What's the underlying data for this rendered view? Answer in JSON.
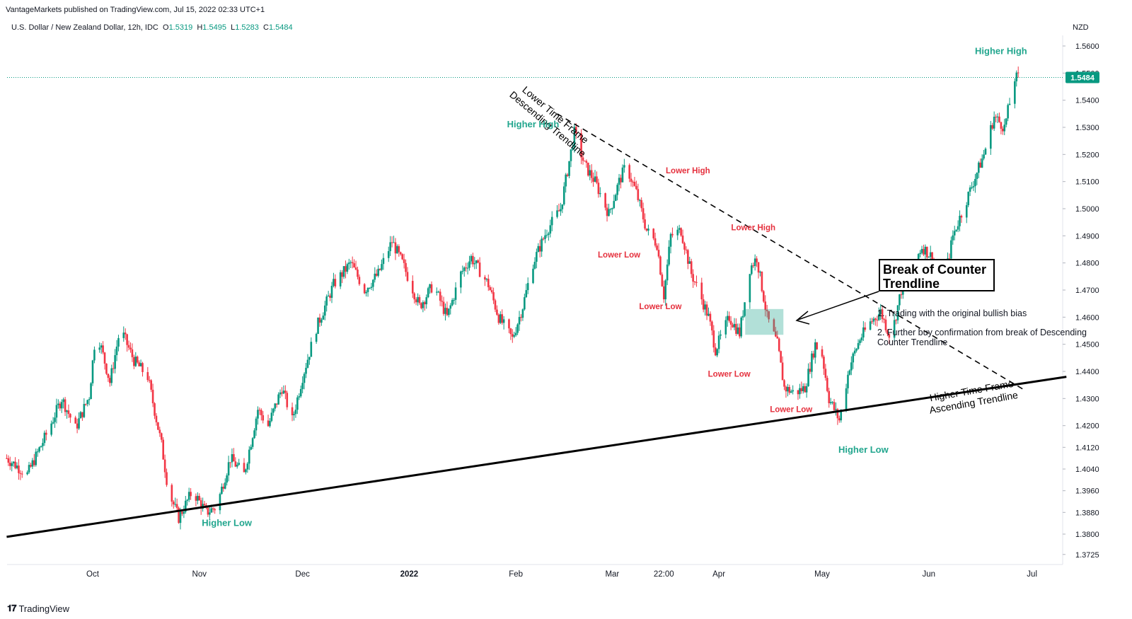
{
  "publisher": "VantageMarkets published on TradingView.com, Jul 15, 2022 02:33 UTC+1",
  "symbol": {
    "name": "U.S. Dollar / New Zealand Dollar, 12h, IDC",
    "o_label": "O",
    "o": "1.5319",
    "h_label": "H",
    "h": "1.5495",
    "l_label": "L",
    "l": "1.5283",
    "c_label": "C",
    "c": "1.5484"
  },
  "currency": "NZD",
  "last_price_label": "1.5484",
  "colors": {
    "up": "#089981",
    "down": "#f23645",
    "green_label": "#22a68e",
    "red_label": "#e5303d",
    "zone": "#22a68e"
  },
  "chart_data": {
    "type": "candlestick",
    "x_ticks": [
      "Oct",
      "Nov",
      "Dec",
      "2022",
      "Feb",
      "Mar",
      "22:00",
      "Apr",
      "May",
      "Jun",
      "Jul"
    ],
    "y_ticks": [
      "1.5600",
      "1.5500",
      "1.5400",
      "1.5300",
      "1.5200",
      "1.5100",
      "1.5000",
      "1.4900",
      "1.4800",
      "1.4700",
      "1.4600",
      "1.4500",
      "1.4400",
      "1.4300",
      "1.4200",
      "1.4120",
      "1.4040",
      "1.3960",
      "1.3880",
      "1.3800",
      "1.3725"
    ],
    "last_price": 1.5484,
    "close_path": [
      [
        "2021-09-06",
        1.408
      ],
      [
        "2021-09-12",
        1.402
      ],
      [
        "2021-09-18",
        1.418
      ],
      [
        "2021-09-22",
        1.43
      ],
      [
        "2021-09-26",
        1.419
      ],
      [
        "2021-09-30",
        1.431
      ],
      [
        "2021-10-02",
        1.456
      ],
      [
        "2021-10-06",
        1.436
      ],
      [
        "2021-10-09",
        1.456
      ],
      [
        "2021-10-13",
        1.444
      ],
      [
        "2021-10-17",
        1.438
      ],
      [
        "2021-10-21",
        1.413
      ],
      [
        "2021-10-23",
        1.396
      ],
      [
        "2021-10-26",
        1.386
      ],
      [
        "2021-10-30",
        1.396
      ],
      [
        "2021-11-03",
        1.388
      ],
      [
        "2021-11-06",
        1.39
      ],
      [
        "2021-11-10",
        1.408
      ],
      [
        "2021-11-14",
        1.402
      ],
      [
        "2021-11-18",
        1.426
      ],
      [
        "2021-11-21",
        1.42
      ],
      [
        "2021-11-25",
        1.434
      ],
      [
        "2021-11-28",
        1.422
      ],
      [
        "2021-12-01",
        1.438
      ],
      [
        "2021-12-05",
        1.456
      ],
      [
        "2021-12-10",
        1.472
      ],
      [
        "2021-12-15",
        1.48
      ],
      [
        "2021-12-19",
        1.47
      ],
      [
        "2021-12-23",
        1.476
      ],
      [
        "2021-12-27",
        1.488
      ],
      [
        "2021-12-30",
        1.48
      ],
      [
        "2022-01-04",
        1.464
      ],
      [
        "2022-01-08",
        1.472
      ],
      [
        "2022-01-12",
        1.46
      ],
      [
        "2022-01-16",
        1.476
      ],
      [
        "2022-01-19",
        1.482
      ],
      [
        "2022-01-24",
        1.472
      ],
      [
        "2022-01-27",
        1.46
      ],
      [
        "2022-01-31",
        1.452
      ],
      [
        "2022-02-03",
        1.464
      ],
      [
        "2022-02-06",
        1.48
      ],
      [
        "2022-02-10",
        1.492
      ],
      [
        "2022-02-14",
        1.5
      ],
      [
        "2022-02-18",
        1.528
      ],
      [
        "2022-02-21",
        1.516
      ],
      [
        "2022-02-24",
        1.51
      ],
      [
        "2022-02-28",
        1.498
      ],
      [
        "2022-03-03",
        1.51
      ],
      [
        "2022-03-05",
        1.516
      ],
      [
        "2022-03-08",
        1.506
      ],
      [
        "2022-03-11",
        1.492
      ],
      [
        "2022-03-14",
        1.487
      ],
      [
        "2022-03-16",
        1.468
      ],
      [
        "2022-03-18",
        1.49
      ],
      [
        "2022-03-21",
        1.492
      ],
      [
        "2022-03-24",
        1.476
      ],
      [
        "2022-03-26",
        1.47
      ],
      [
        "2022-03-29",
        1.46
      ],
      [
        "2022-03-31",
        1.448
      ],
      [
        "2022-04-04",
        1.46
      ],
      [
        "2022-04-07",
        1.454
      ],
      [
        "2022-04-10",
        1.478
      ],
      [
        "2022-04-12",
        1.482
      ],
      [
        "2022-04-15",
        1.46
      ],
      [
        "2022-04-18",
        1.45
      ],
      [
        "2022-04-20",
        1.434
      ],
      [
        "2022-04-23",
        1.432
      ],
      [
        "2022-04-26",
        1.434
      ],
      [
        "2022-04-29",
        1.45
      ],
      [
        "2022-05-01",
        1.446
      ],
      [
        "2022-05-03",
        1.43
      ],
      [
        "2022-05-06",
        1.422
      ],
      [
        "2022-05-09",
        1.442
      ],
      [
        "2022-05-12",
        1.452
      ],
      [
        "2022-05-15",
        1.458
      ],
      [
        "2022-05-18",
        1.462
      ],
      [
        "2022-05-21",
        1.452
      ],
      [
        "2022-05-24",
        1.47
      ],
      [
        "2022-05-27",
        1.478
      ],
      [
        "2022-05-30",
        1.486
      ],
      [
        "2022-06-02",
        1.482
      ],
      [
        "2022-06-05",
        1.47
      ],
      [
        "2022-06-08",
        1.49
      ],
      [
        "2022-06-11",
        1.5
      ],
      [
        "2022-06-14",
        1.51
      ],
      [
        "2022-06-17",
        1.52
      ],
      [
        "2022-06-20",
        1.534
      ],
      [
        "2022-06-23",
        1.53
      ],
      [
        "2022-06-26",
        1.548
      ],
      [
        "2022-06-27",
        1.5484
      ]
    ],
    "trendlines": [
      {
        "label": "Higher Time Frame Ascending Trendline",
        "style": "solid",
        "from": [
          "2021-09-06",
          1.379
        ],
        "to": [
          "2022-07-11",
          1.438
        ]
      },
      {
        "label": "Lower Time Frame Descending Trendline",
        "style": "dashed",
        "from": [
          "2022-02-13",
          1.535
        ],
        "to": [
          "2022-06-29",
          1.433
        ]
      }
    ],
    "annotations": [
      {
        "text": "Higher High",
        "color": "green",
        "at": [
          "2022-02-06",
          1.53
        ]
      },
      {
        "text": "Lower High",
        "color": "red",
        "at": [
          "2022-03-23",
          1.513
        ]
      },
      {
        "text": "Lower High",
        "color": "red",
        "at": [
          "2022-04-11",
          1.492
        ]
      },
      {
        "text": "Lower Low",
        "color": "red",
        "at": [
          "2022-03-03",
          1.482
        ]
      },
      {
        "text": "Lower Low",
        "color": "red",
        "at": [
          "2022-03-15",
          1.463
        ]
      },
      {
        "text": "Lower Low",
        "color": "red",
        "at": [
          "2022-04-04",
          1.438
        ]
      },
      {
        "text": "Lower Low",
        "color": "red",
        "at": [
          "2022-04-22",
          1.425
        ]
      },
      {
        "text": "Higher Low",
        "color": "green",
        "at": [
          "2021-11-09",
          1.383
        ]
      },
      {
        "text": "Higher Low",
        "color": "green",
        "at": [
          "2022-05-13",
          1.41
        ]
      },
      {
        "text": "Higher High",
        "color": "green",
        "at": [
          "2022-06-22",
          1.557
        ]
      }
    ]
  },
  "callout": {
    "title_line1": "Break of Counter",
    "title_line2": "Trendline",
    "note1": "1. Trading with the original bullish bias",
    "note2": "2. Further buy confirmation from break of Descending Counter Trendline"
  },
  "brand": "TradingView"
}
